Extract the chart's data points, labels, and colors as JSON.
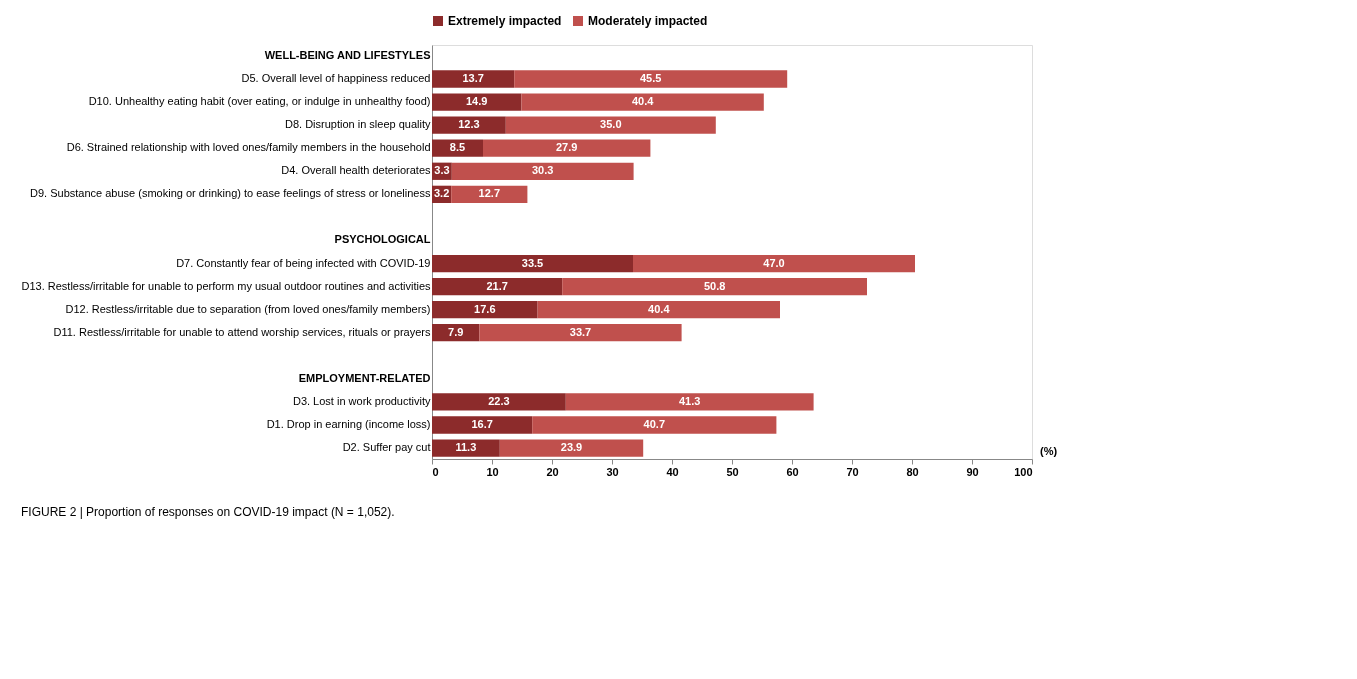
{
  "chart_data": {
    "type": "bar",
    "orientation": "horizontal",
    "stacked": true,
    "categories": [
      "WELL-BEING AND LIFESTYLES",
      "D5. Overall level of happiness reduced",
      "D10. Unhealthy eating habit (over eating, or indulge in unhealthy food)",
      "D8. Disruption in sleep quality",
      "D6. Strained relationship with loved ones/family members in the household",
      "D4. Overall health deteriorates",
      "D9. Substance abuse (smoking or drinking) to ease feelings of stress or loneliness",
      null,
      "PSYCHOLOGICAL",
      "D7. Constantly fear of being infected with COVID-19",
      "D13. Restless/irritable for unable to perform my usual outdoor routines and activities",
      "D12. Restless/irritable due to separation (from loved ones/family members)",
      "D11. Restless/irritable for unable to attend worship services, rituals or prayers",
      null,
      "EMPLOYMENT-RELATED",
      "D3. Lost in work productivity",
      "D1. Drop in earning (income loss)",
      "D2. Suffer pay cut"
    ],
    "series": [
      {
        "name": "Extremely impacted",
        "color": "#8c2b2b",
        "values": [
          null,
          13.7,
          14.9,
          12.3,
          8.5,
          3.3,
          3.2,
          null,
          null,
          33.5,
          21.7,
          17.6,
          7.9,
          null,
          null,
          22.3,
          16.7,
          11.3
        ],
        "value_labels": [
          null,
          "13.7",
          "14.9",
          "12.3",
          "8.5",
          "3.3",
          "3.2",
          null,
          null,
          "33.5",
          "21.7",
          "17.6",
          "7.9",
          null,
          null,
          "22.3",
          "16.7",
          "11.3"
        ]
      },
      {
        "name": "Moderately impacted",
        "color": "#c0504d",
        "values": [
          null,
          45.5,
          40.4,
          35.0,
          27.9,
          30.3,
          12.7,
          null,
          null,
          47.0,
          50.8,
          40.4,
          33.7,
          null,
          null,
          41.3,
          40.7,
          23.9
        ],
        "value_labels": [
          null,
          "45.5",
          "40.4",
          "35.0",
          "27.9",
          "30.3",
          "12.7",
          null,
          null,
          "47.0",
          "50.8",
          "40.4",
          "33.7",
          null,
          null,
          "41.3",
          "40.7",
          "23.9"
        ]
      }
    ],
    "xlim": [
      0,
      100
    ],
    "xticks": [
      0,
      10,
      20,
      30,
      40,
      50,
      60,
      70,
      80,
      90,
      100
    ],
    "xlabel": "(%)",
    "legend": "top",
    "annotations": [
      "FIGURE 2 | Proportion of responses on COVID-19 impact (N = 1,052)."
    ]
  }
}
